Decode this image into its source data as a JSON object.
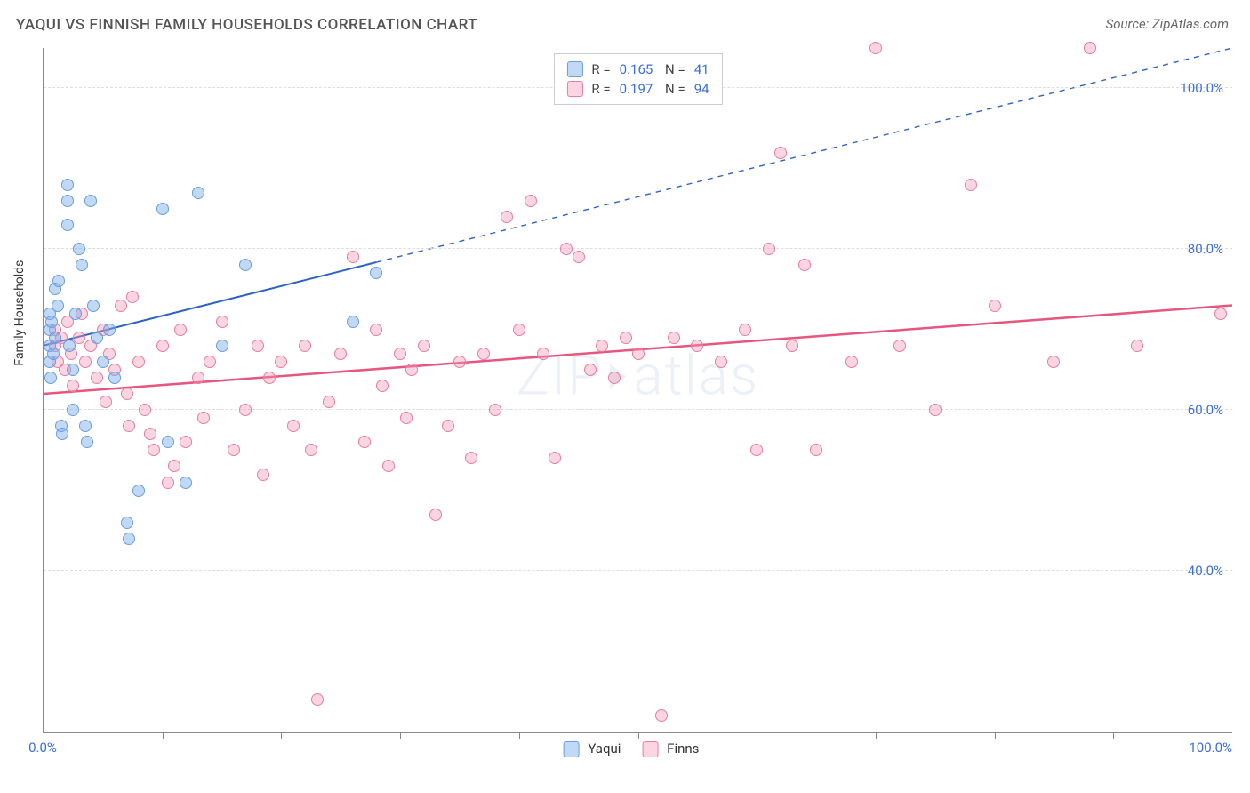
{
  "header": {
    "title": "YAQUI VS FINNISH FAMILY HOUSEHOLDS CORRELATION CHART",
    "source": "Source: ZipAtlas.com"
  },
  "watermark": "ZIP atlas",
  "chart": {
    "type": "scatter",
    "ylabel": "Family Households",
    "xlim": [
      0,
      100
    ],
    "ylim": [
      20,
      105
    ],
    "x_ticks": [
      0,
      100
    ],
    "x_tick_labels": [
      "0.0%",
      "100.0%"
    ],
    "x_minor_ticks": [
      10,
      20,
      30,
      40,
      50,
      60,
      70,
      80,
      90
    ],
    "y_grid": [
      40,
      60,
      80,
      100
    ],
    "y_grid_labels": [
      "40.0%",
      "60.0%",
      "80.0%",
      "100.0%"
    ],
    "grid_color": "#dddddd",
    "background_color": "#ffffff",
    "axis_label_color": "#3b6fd8",
    "marker_size": 14,
    "series": [
      {
        "name": "Yaqui",
        "fill": "rgba(120,170,235,0.45)",
        "stroke": "#6a9de0",
        "R": "0.165",
        "N": "41",
        "trend": {
          "x1": 0,
          "y1": 68,
          "x2": 100,
          "y2": 105,
          "solid_until_x": 28,
          "color": "#2e63c4",
          "width": 2
        },
        "points": [
          [
            0.5,
            68
          ],
          [
            0.5,
            70
          ],
          [
            0.5,
            72
          ],
          [
            0.5,
            66
          ],
          [
            0.6,
            64
          ],
          [
            0.7,
            71
          ],
          [
            0.8,
            67
          ],
          [
            1,
            75
          ],
          [
            1,
            69
          ],
          [
            1.2,
            73
          ],
          [
            1.3,
            76
          ],
          [
            1.5,
            58
          ],
          [
            1.6,
            57
          ],
          [
            2,
            86
          ],
          [
            2,
            83
          ],
          [
            2,
            88
          ],
          [
            2.2,
            68
          ],
          [
            2.5,
            65
          ],
          [
            2.5,
            60
          ],
          [
            2.7,
            72
          ],
          [
            3,
            80
          ],
          [
            3.2,
            78
          ],
          [
            3.5,
            58
          ],
          [
            3.7,
            56
          ],
          [
            4,
            86
          ],
          [
            4.2,
            73
          ],
          [
            4.5,
            69
          ],
          [
            5,
            66
          ],
          [
            5.5,
            70
          ],
          [
            6,
            64
          ],
          [
            7,
            46
          ],
          [
            7.2,
            44
          ],
          [
            8,
            50
          ],
          [
            10,
            85
          ],
          [
            10.5,
            56
          ],
          [
            12,
            51
          ],
          [
            13,
            87
          ],
          [
            15,
            68
          ],
          [
            17,
            78
          ],
          [
            26,
            71
          ],
          [
            28,
            77
          ]
        ]
      },
      {
        "name": "Finns",
        "fill": "rgba(245,150,180,0.40)",
        "stroke": "#e77ea0",
        "R": "0.197",
        "N": "94",
        "trend": {
          "x1": 0,
          "y1": 62,
          "x2": 100,
          "y2": 73,
          "solid_until_x": 100,
          "color": "#e5577f",
          "width": 2.5
        },
        "points": [
          [
            1,
            68
          ],
          [
            1,
            70
          ],
          [
            1.2,
            66
          ],
          [
            1.5,
            69
          ],
          [
            1.8,
            65
          ],
          [
            2,
            71
          ],
          [
            2.3,
            67
          ],
          [
            2.5,
            63
          ],
          [
            3,
            69
          ],
          [
            3.2,
            72
          ],
          [
            3.5,
            66
          ],
          [
            4,
            68
          ],
          [
            4.5,
            64
          ],
          [
            5,
            70
          ],
          [
            5.2,
            61
          ],
          [
            5.5,
            67
          ],
          [
            6,
            65
          ],
          [
            6.5,
            73
          ],
          [
            7,
            62
          ],
          [
            7.2,
            58
          ],
          [
            7.5,
            74
          ],
          [
            8,
            66
          ],
          [
            8.5,
            60
          ],
          [
            9,
            57
          ],
          [
            9.3,
            55
          ],
          [
            10,
            68
          ],
          [
            10.5,
            51
          ],
          [
            11,
            53
          ],
          [
            11.5,
            70
          ],
          [
            12,
            56
          ],
          [
            13,
            64
          ],
          [
            13.5,
            59
          ],
          [
            14,
            66
          ],
          [
            15,
            71
          ],
          [
            16,
            55
          ],
          [
            17,
            60
          ],
          [
            18,
            68
          ],
          [
            18.5,
            52
          ],
          [
            19,
            64
          ],
          [
            20,
            66
          ],
          [
            21,
            58
          ],
          [
            22,
            68
          ],
          [
            22.5,
            55
          ],
          [
            23,
            24
          ],
          [
            24,
            61
          ],
          [
            25,
            67
          ],
          [
            26,
            79
          ],
          [
            27,
            56
          ],
          [
            28,
            70
          ],
          [
            28.5,
            63
          ],
          [
            29,
            53
          ],
          [
            30,
            67
          ],
          [
            30.5,
            59
          ],
          [
            31,
            65
          ],
          [
            32,
            68
          ],
          [
            33,
            47
          ],
          [
            34,
            58
          ],
          [
            35,
            66
          ],
          [
            36,
            54
          ],
          [
            37,
            67
          ],
          [
            38,
            60
          ],
          [
            39,
            84
          ],
          [
            40,
            70
          ],
          [
            41,
            86
          ],
          [
            42,
            67
          ],
          [
            43,
            54
          ],
          [
            44,
            80
          ],
          [
            45,
            79
          ],
          [
            46,
            65
          ],
          [
            47,
            68
          ],
          [
            48,
            64
          ],
          [
            49,
            69
          ],
          [
            50,
            67
          ],
          [
            52,
            22
          ],
          [
            53,
            69
          ],
          [
            55,
            68
          ],
          [
            57,
            66
          ],
          [
            59,
            70
          ],
          [
            60,
            55
          ],
          [
            61,
            80
          ],
          [
            62,
            92
          ],
          [
            63,
            68
          ],
          [
            64,
            78
          ],
          [
            65,
            55
          ],
          [
            68,
            66
          ],
          [
            70,
            105
          ],
          [
            72,
            68
          ],
          [
            75,
            60
          ],
          [
            78,
            88
          ],
          [
            80,
            73
          ],
          [
            85,
            66
          ],
          [
            88,
            105
          ],
          [
            92,
            68
          ],
          [
            99,
            72
          ]
        ]
      }
    ],
    "legend_bottom": [
      "Yaqui",
      "Finns"
    ]
  }
}
